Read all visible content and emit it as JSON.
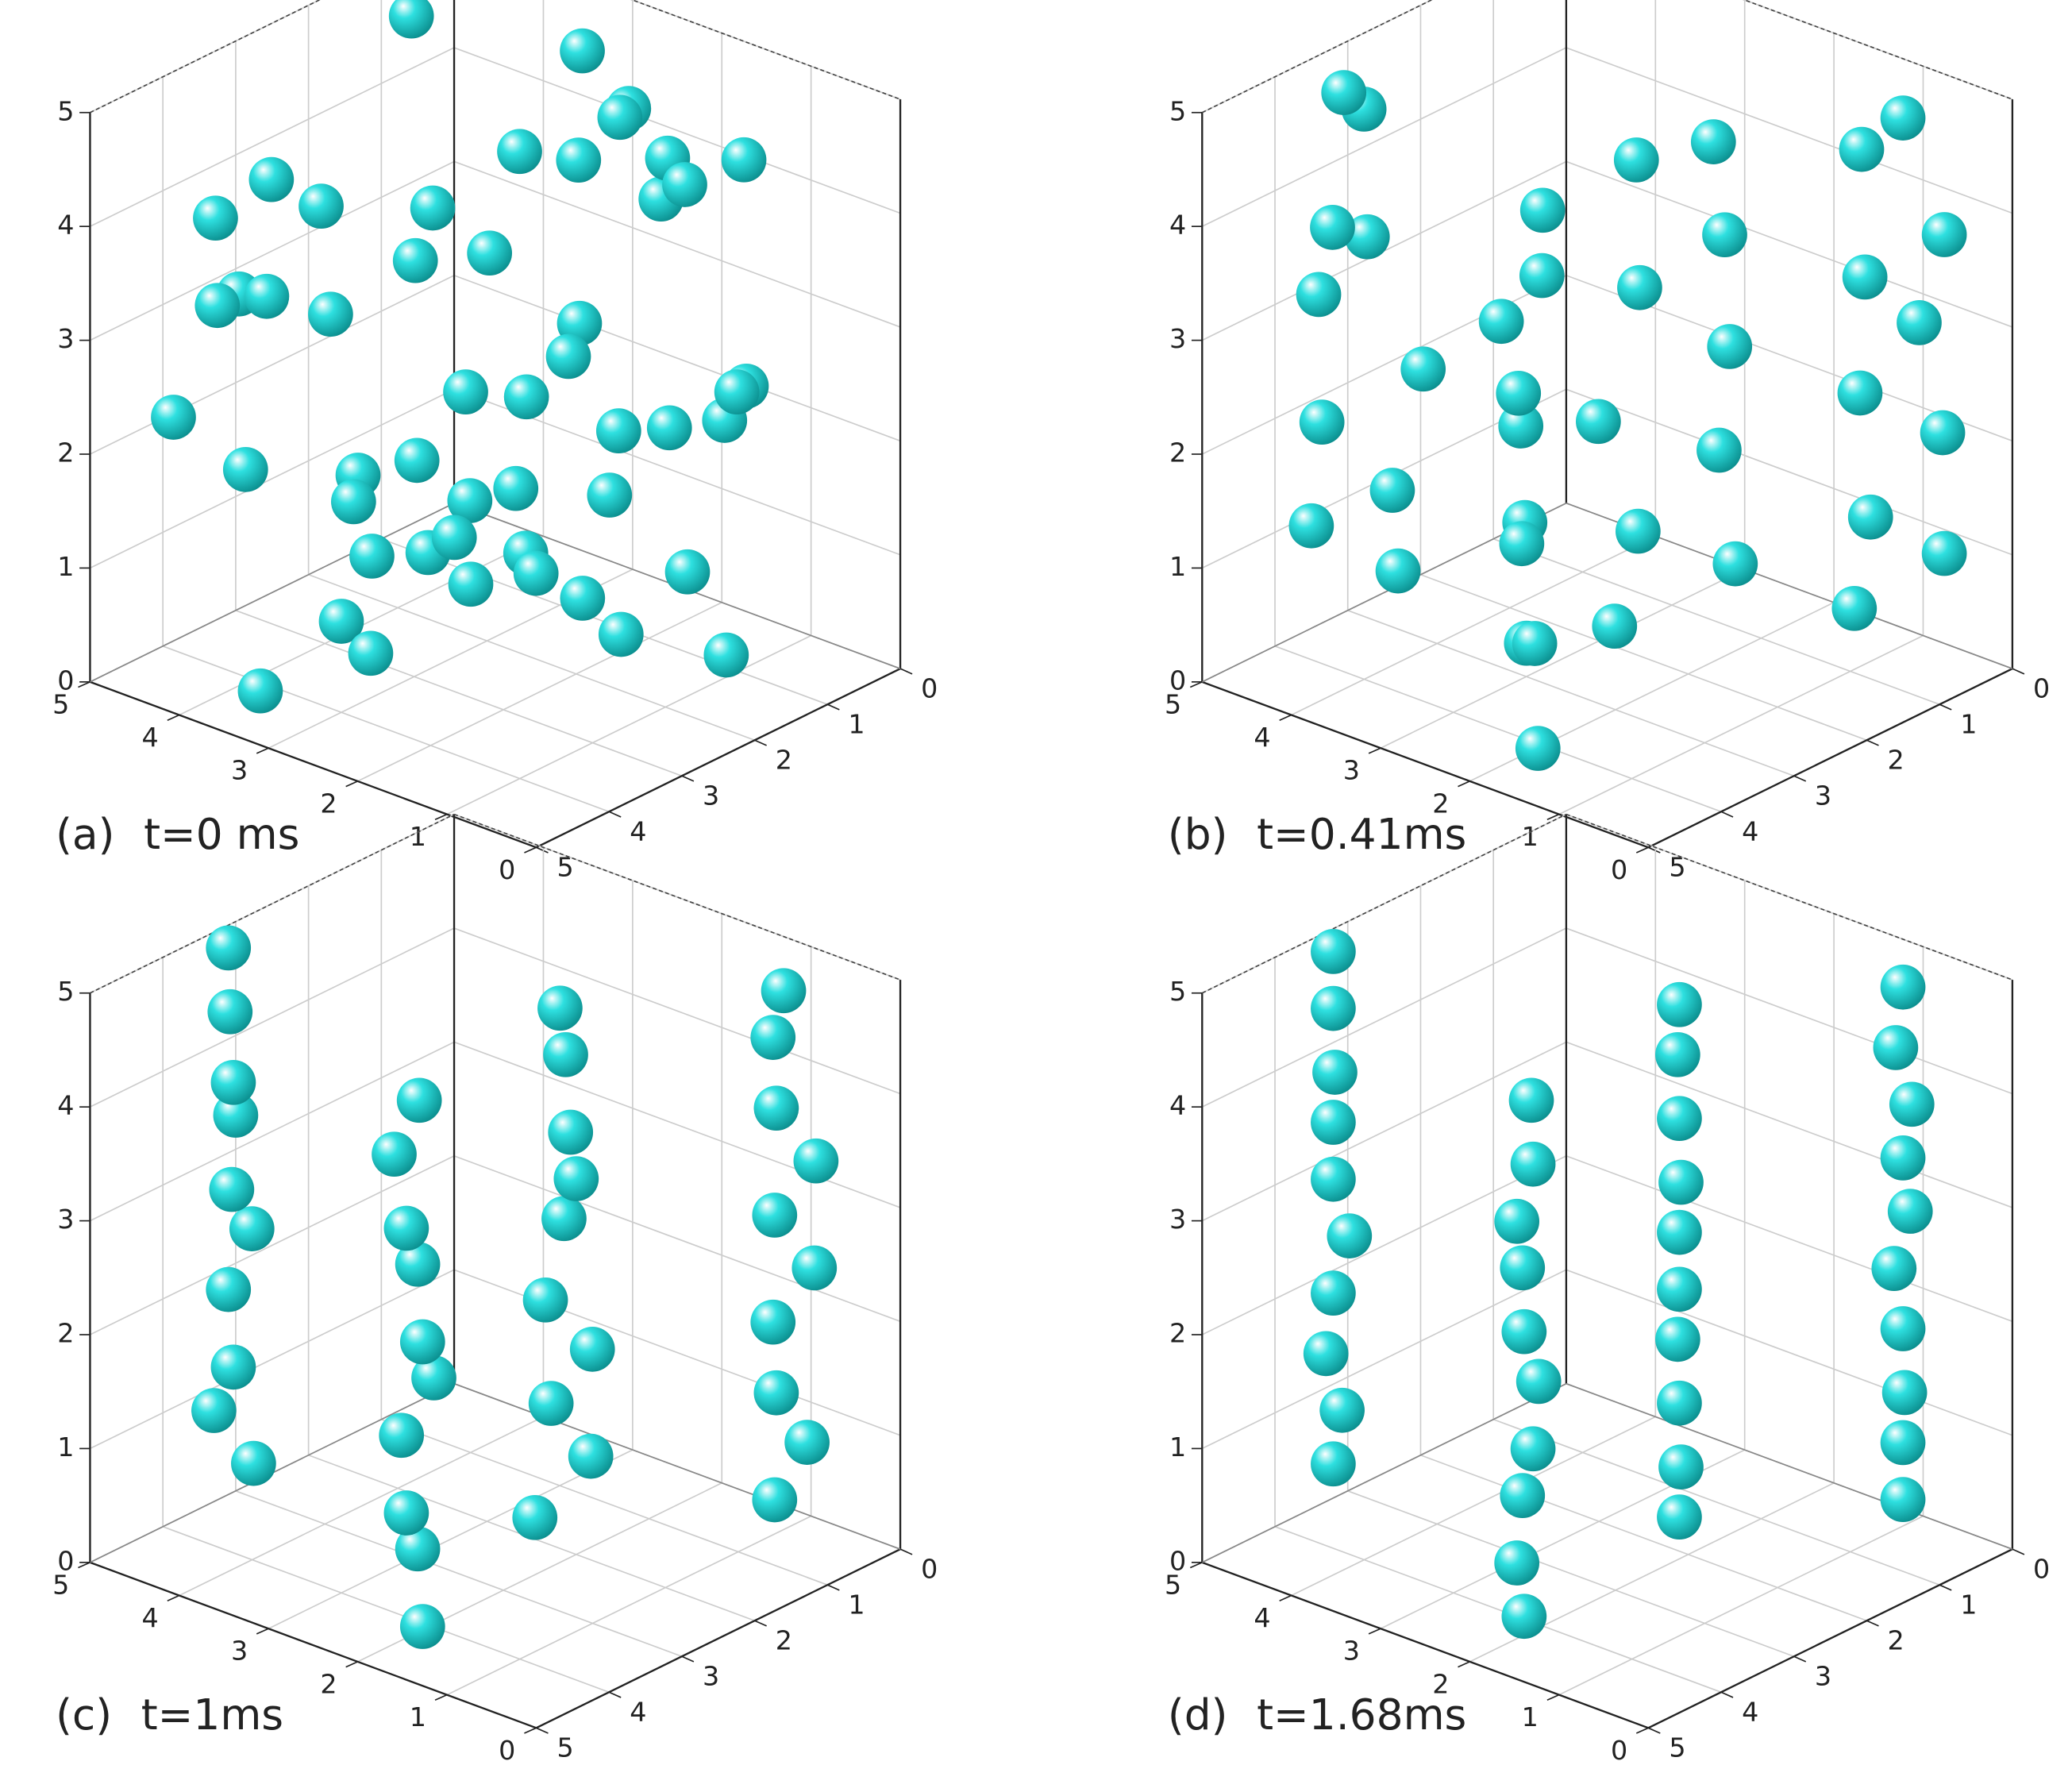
{
  "chart_data": [
    {
      "type": "scatter3d",
      "label": "(a)",
      "title": "t=0 ms",
      "color": "#2ee0e0",
      "xlim": [
        0,
        5
      ],
      "ylim": [
        0,
        5
      ],
      "zlim": [
        0,
        5
      ],
      "xticks": [
        0,
        1,
        2,
        3,
        4,
        5
      ],
      "yticks": [
        0,
        1,
        2,
        3,
        4,
        5
      ],
      "zticks": [
        0,
        1,
        2,
        3,
        4,
        5
      ],
      "grid": true,
      "x": [
        1.2,
        2.5,
        4.1,
        0.8,
        3.3,
        1.9,
        4.6,
        2.8,
        0.5,
        3.9,
        1.5,
        2.2,
        4.4,
        0.9,
        3.1,
        2.7,
        1.1,
        4.8,
        3.6,
        0.3,
        2.0,
        4.0,
        1.7,
        3.4,
        2.9,
        0.6,
        4.3,
        1.3,
        3.8,
        2.4,
        0.2,
        4.7,
        1.8,
        3.0,
        2.6,
        1.0,
        4.2,
        0.7,
        3.5,
        2.1,
        4.9,
        1.4,
        2.3,
        3.7,
        0.4,
        4.5,
        1.6,
        2.8,
        3.2,
        0.1
      ],
      "y": [
        4.5,
        3.2,
        4.8,
        1.1,
        2.6,
        0.4,
        3.9,
        4.1,
        2.2,
        0.9,
        3.6,
        1.8,
        2.9,
        4.7,
        0.6,
        2.4,
        3.3,
        1.5,
        4.4,
        2.8,
        0.2,
        3.0,
        1.2,
        4.9,
        1.9,
        3.7,
        0.8,
        2.5,
        4.0,
        1.3,
        3.4,
        2.1,
        0.5,
        4.6,
        3.8,
        1.6,
        2.7,
        4.3,
        0.3,
        3.1,
        1.0,
        2.0,
        4.2,
        0.7,
        1.4,
        3.5,
        2.3,
        0.1,
        4.8,
        2.6
      ],
      "z": [
        4.8,
        3.9,
        2.1,
        4.4,
        1.3,
        0.6,
        3.5,
        2.8,
        4.0,
        1.8,
        0.9,
        3.2,
        4.6,
        2.5,
        1.1,
        3.8,
        0.4,
        2.9,
        1.6,
        4.2,
        3.0,
        0.8,
        2.3,
        3.6,
        4.9,
        1.5,
        2.7,
        0.3,
        3.3,
        1.9,
        4.5,
        1.0,
        2.6,
        3.9,
        0.7,
        4.1,
        2.0,
        1.4,
        3.1,
        0.5,
        2.4,
        4.7,
        1.2,
        3.7,
        2.2,
        0.2,
        4.3,
        1.7,
        2.9,
        3.4
      ]
    },
    {
      "type": "scatter3d",
      "label": "(b)",
      "title": "t=0.41ms",
      "color": "#2ee0e0",
      "xlim": [
        0,
        5
      ],
      "ylim": [
        0,
        5
      ],
      "zlim": [
        0,
        5
      ],
      "xticks": [
        0,
        1,
        2,
        3,
        4,
        5
      ],
      "yticks": [
        0,
        1,
        2,
        3,
        4,
        5
      ],
      "zticks": [
        0,
        1,
        2,
        3,
        4,
        5
      ],
      "grid": true,
      "x": [
        2.8,
        3.5,
        3.0,
        3.6,
        2.7,
        3.4,
        3.1,
        3.7,
        2.9,
        3.3,
        4.8,
        4.1,
        4.6,
        4.0,
        4.9,
        4.3,
        4.7,
        4.2,
        4.5,
        4.0,
        2.4,
        1.6,
        2.2,
        1.7,
        2.5,
        1.8,
        2.3,
        1.5,
        2.1,
        1.9,
        0.7,
        0.2,
        0.6,
        0.1,
        0.5,
        0.3,
        0.8,
        0.2,
        0.6,
        0.4
      ],
      "y": [
        4.6,
        5.0,
        4.5,
        4.8,
        4.4,
        5.0,
        4.7,
        4.6,
        4.9,
        4.8,
        1.4,
        2.1,
        1.6,
        2.2,
        1.5,
        2.0,
        1.7,
        2.3,
        1.6,
        2.0,
        2.5,
        1.8,
        2.4,
        1.9,
        2.6,
        1.7,
        2.3,
        2.0,
        2.5,
        1.8,
        1.2,
        0.6,
        1.1,
        0.7,
        1.3,
        0.8,
        1.0,
        0.6,
        1.2,
        0.9
      ],
      "z": [
        0.4,
        0.9,
        1.2,
        1.9,
        2.2,
        2.9,
        3.4,
        3.7,
        4.4,
        4.7,
        0.4,
        0.9,
        1.2,
        1.9,
        2.2,
        2.9,
        3.4,
        3.7,
        4.4,
        4.7,
        0.4,
        0.9,
        1.2,
        1.9,
        2.2,
        2.9,
        3.4,
        3.7,
        4.4,
        4.7,
        0.4,
        0.9,
        1.2,
        1.9,
        2.2,
        2.9,
        3.4,
        3.7,
        4.4,
        4.7
      ]
    },
    {
      "type": "scatter3d",
      "label": "(c)",
      "title": "t=1ms",
      "color": "#2ee0e0",
      "xlim": [
        0,
        5
      ],
      "ylim": [
        0,
        5
      ],
      "zlim": [
        0,
        5
      ],
      "xticks": [
        0,
        1,
        2,
        3,
        4,
        5
      ],
      "yticks": [
        0,
        1,
        2,
        3,
        4,
        5
      ],
      "zticks": [
        0,
        1,
        2,
        3,
        4,
        5
      ],
      "grid": true,
      "x": [
        3.0,
        3.3,
        3.4,
        3.1,
        2.9,
        3.3,
        3.0,
        3.4,
        3.2,
        3.1,
        4.6,
        4.3,
        4.7,
        4.4,
        4.2,
        4.6,
        4.3,
        4.7,
        4.5,
        4.4,
        2.2,
        1.8,
        2.1,
        1.9,
        2.3,
        1.8,
        2.0,
        2.2,
        1.9,
        2.1,
        0.5,
        0.3,
        0.6,
        0.4,
        0.2,
        0.5,
        0.3,
        0.6,
        0.4,
        0.5
      ],
      "y": [
        4.8,
        5.0,
        4.7,
        5.0,
        4.9,
        4.8,
        5.0,
        4.7,
        4.9,
        5.0,
        1.6,
        1.9,
        1.7,
        2.0,
        1.8,
        1.6,
        1.9,
        1.7,
        2.0,
        1.8,
        2.3,
        2.0,
        2.2,
        1.9,
        2.1,
        2.3,
        2.0,
        1.9,
        2.2,
        2.1,
        1.0,
        0.8,
        0.9,
        1.1,
        0.8,
        1.0,
        0.7,
        0.9,
        1.1,
        0.9
      ],
      "z": [
        0.3,
        0.8,
        1.3,
        1.8,
        2.3,
        2.8,
        3.3,
        3.8,
        4.3,
        4.8,
        0.3,
        0.8,
        1.3,
        1.8,
        2.3,
        2.8,
        3.3,
        3.8,
        4.3,
        4.8,
        0.3,
        0.8,
        1.3,
        1.8,
        2.3,
        2.8,
        3.3,
        3.8,
        4.3,
        4.8,
        0.3,
        0.8,
        1.3,
        1.8,
        2.3,
        2.8,
        3.3,
        3.8,
        4.3,
        4.8
      ]
    },
    {
      "type": "scatter3d",
      "label": "(d)",
      "title": "t=1.68ms",
      "color": "#2ee0e0",
      "xlim": [
        0,
        5
      ],
      "ylim": [
        0,
        5
      ],
      "zlim": [
        0,
        5
      ],
      "xticks": [
        0,
        1,
        2,
        3,
        4,
        5
      ],
      "yticks": [
        0,
        1,
        2,
        3,
        4,
        5
      ],
      "zticks": [
        0,
        1,
        2,
        3,
        4,
        5
      ],
      "grid": true,
      "x": [
        3.2,
        3.2,
        3.3,
        3.2,
        3.1,
        3.2,
        3.2,
        3.3,
        3.2,
        3.2,
        4.5,
        4.6,
        4.4,
        4.5,
        4.3,
        4.5,
        4.4,
        4.6,
        4.5,
        4.4,
        2.0,
        2.1,
        2.0,
        1.9,
        2.0,
        2.0,
        2.1,
        2.0,
        1.9,
        2.0,
        0.4,
        0.4,
        0.5,
        0.4,
        0.4,
        0.3,
        0.4,
        0.4,
        0.5,
        0.4
      ],
      "y": [
        5.0,
        4.9,
        5.0,
        5.0,
        4.9,
        5.0,
        5.0,
        4.9,
        5.0,
        5.0,
        1.8,
        1.8,
        1.9,
        1.7,
        1.8,
        1.8,
        1.9,
        1.8,
        1.7,
        1.8,
        2.1,
        2.0,
        2.1,
        2.2,
        2.1,
        2.1,
        2.0,
        2.1,
        2.2,
        2.1,
        0.9,
        0.9,
        0.8,
        0.9,
        1.0,
        0.9,
        0.9,
        0.8,
        0.9,
        0.9
      ],
      "z": [
        0.3,
        0.8,
        1.3,
        1.8,
        2.3,
        2.8,
        3.3,
        3.8,
        4.3,
        4.8,
        0.3,
        0.8,
        1.3,
        1.8,
        2.3,
        2.8,
        3.3,
        3.8,
        4.3,
        4.8,
        0.3,
        0.8,
        1.3,
        1.8,
        2.3,
        2.8,
        3.3,
        3.8,
        4.3,
        4.8,
        0.3,
        0.8,
        1.3,
        1.8,
        2.3,
        2.8,
        3.3,
        3.8,
        4.3,
        4.8
      ]
    }
  ]
}
